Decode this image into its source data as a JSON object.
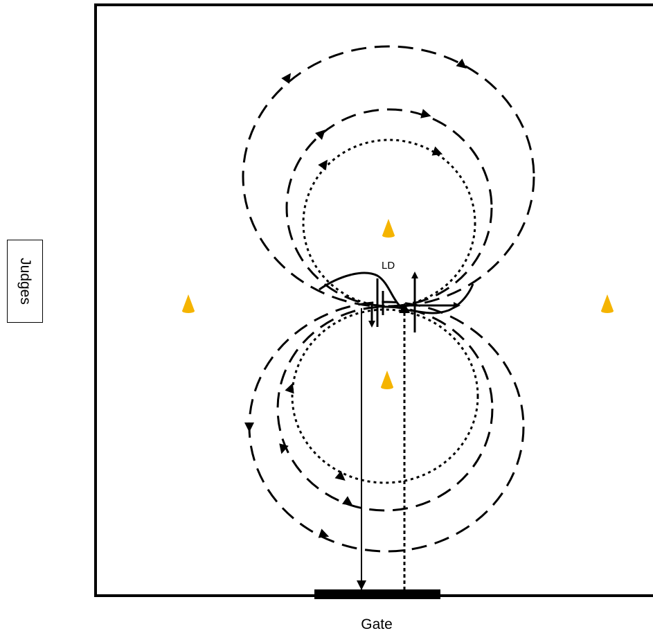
{
  "labels": {
    "judges": "Judges",
    "gate": "Gate",
    "ld": "LD"
  },
  "colors": {
    "cone": "#F5B400",
    "line": "#000000"
  },
  "icons": [
    "cone-icon",
    "arrowhead-icon"
  ]
}
